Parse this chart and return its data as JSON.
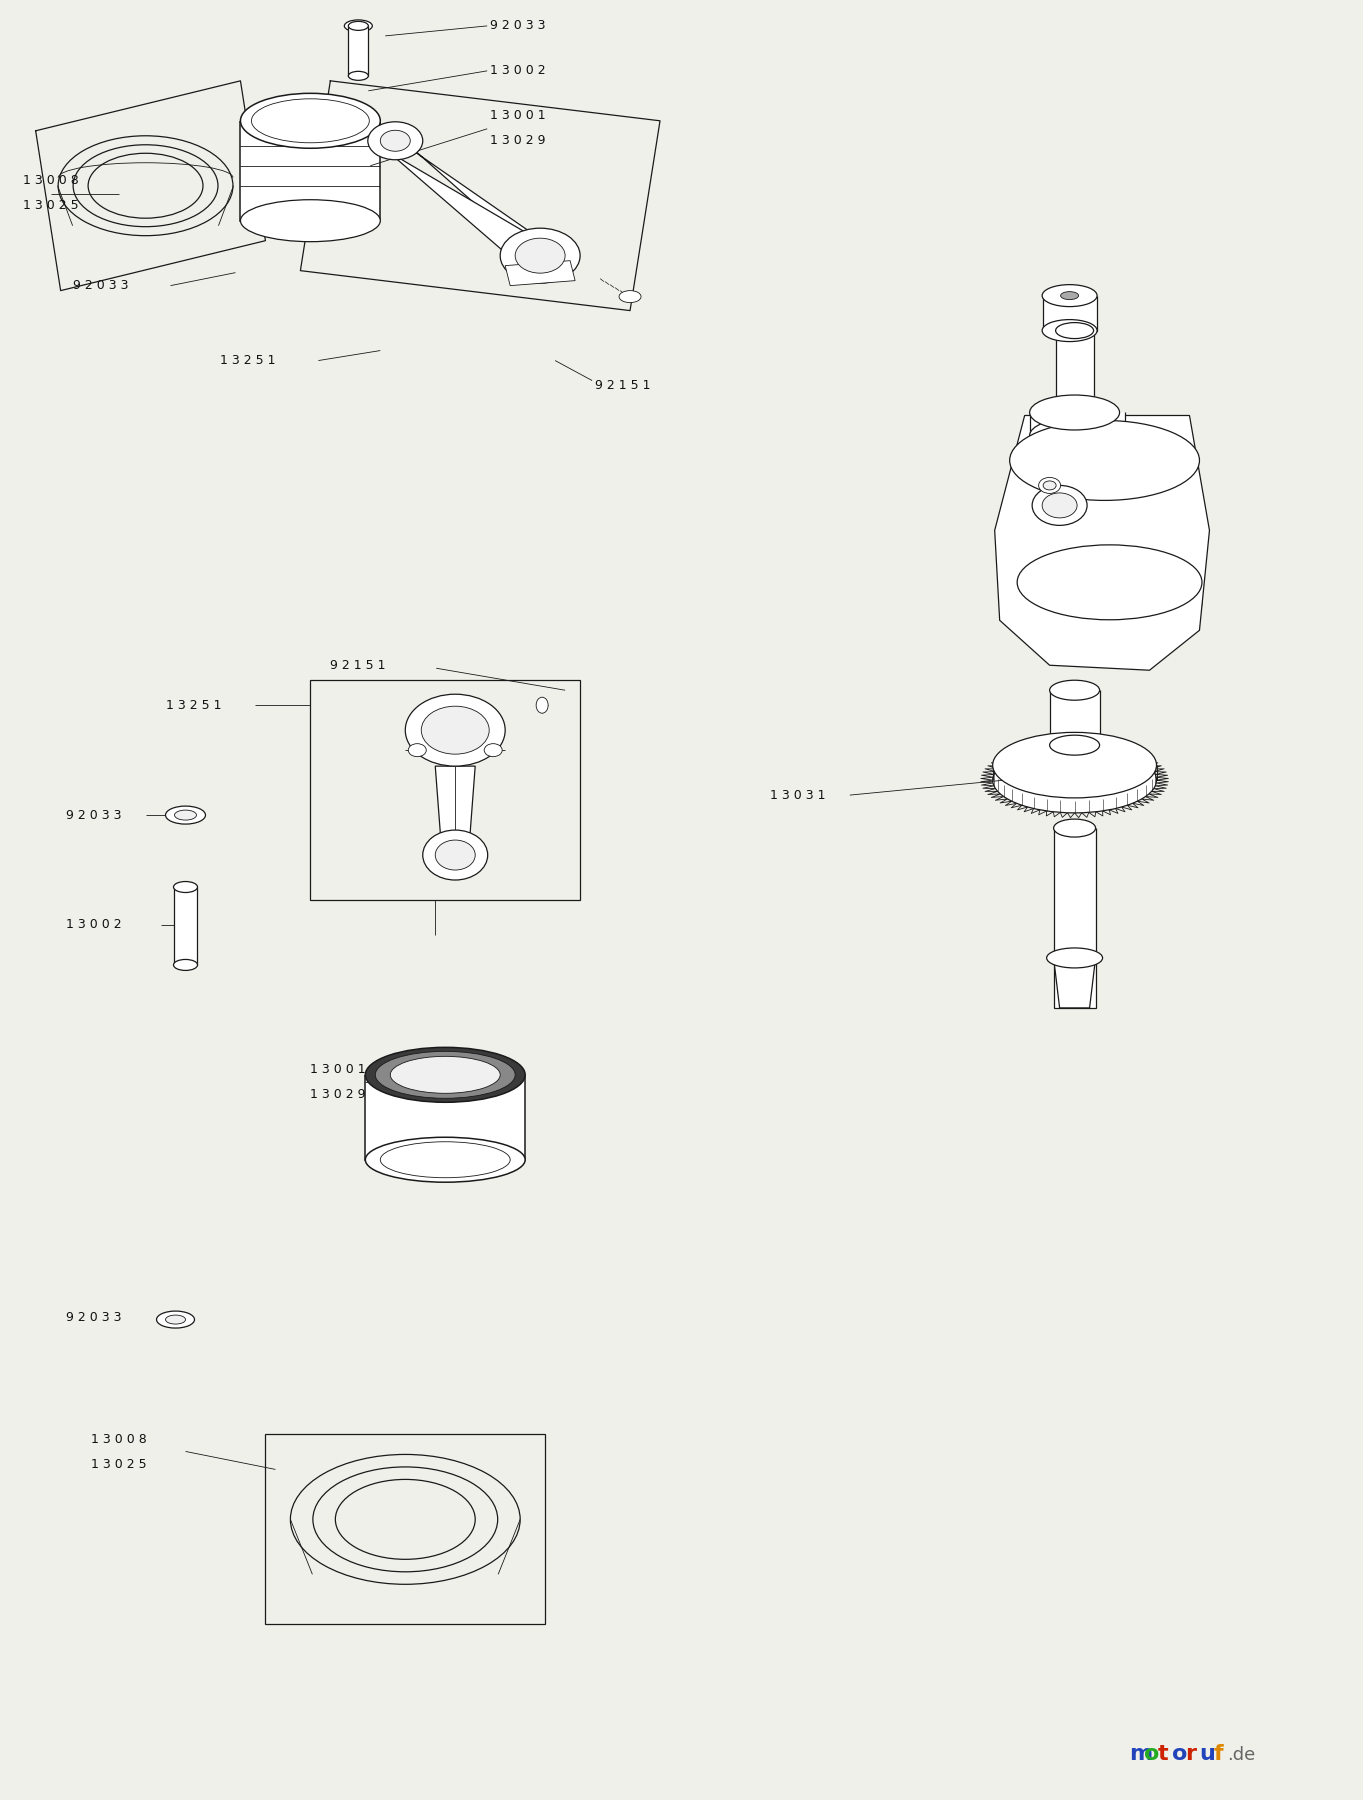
{
  "bg_color": "#f0f0eb",
  "line_color": "#1a1a1a",
  "text_color": "#111111",
  "fig_width": 13.63,
  "fig_height": 18.0,
  "lw_thin": 0.6,
  "lw_med": 0.9,
  "lw_thick": 1.1,
  "label_fs": 9.0,
  "wm_letters": [
    [
      "m",
      "#2244bb"
    ],
    [
      "o",
      "#22aa22"
    ],
    [
      "t",
      "#cc2200"
    ],
    [
      "o",
      "#2244bb"
    ],
    [
      "r",
      "#cc2200"
    ],
    [
      "u",
      "#2244bb"
    ],
    [
      "f",
      "#dd8800"
    ]
  ]
}
